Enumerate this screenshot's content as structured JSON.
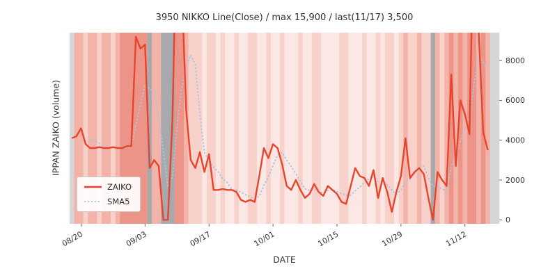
{
  "chart_data": {
    "type": "line",
    "title": "3950 NIKKO Line(Close) / max 15,900 / last(11/17) 3,500",
    "xlabel": "DATE",
    "ylabel": "IPPAN ZAIKO (volume)",
    "ylim": [
      -200,
      9400
    ],
    "yticks": [
      0,
      2000,
      4000,
      6000,
      8000
    ],
    "xticks": [
      {
        "i": 2,
        "label": "08/20"
      },
      {
        "i": 16,
        "label": "09/03"
      },
      {
        "i": 30,
        "label": "09/17"
      },
      {
        "i": 44,
        "label": "10/01"
      },
      {
        "i": 58,
        "label": "10/15"
      },
      {
        "i": 72,
        "label": "10/29"
      },
      {
        "i": 86,
        "label": "11/12"
      }
    ],
    "dates": [
      "08/18",
      "08/19",
      "08/20",
      "08/21",
      "08/22",
      "08/23",
      "08/24",
      "08/25",
      "08/26",
      "08/27",
      "08/28",
      "08/29",
      "08/30",
      "08/31",
      "09/01",
      "09/02",
      "09/03",
      "09/04",
      "09/05",
      "09/06",
      "09/07",
      "09/08",
      "09/09",
      "09/10",
      "09/11",
      "09/12",
      "09/13",
      "09/14",
      "09/15",
      "09/16",
      "09/17",
      "09/18",
      "09/19",
      "09/20",
      "09/21",
      "09/22",
      "09/23",
      "09/24",
      "09/25",
      "09/26",
      "09/27",
      "09/28",
      "09/29",
      "09/30",
      "10/01",
      "10/02",
      "10/03",
      "10/04",
      "10/05",
      "10/06",
      "10/07",
      "10/08",
      "10/09",
      "10/10",
      "10/11",
      "10/12",
      "10/13",
      "10/14",
      "10/15",
      "10/16",
      "10/17",
      "10/18",
      "10/19",
      "10/20",
      "10/21",
      "10/22",
      "10/23",
      "10/24",
      "10/25",
      "10/26",
      "10/27",
      "10/28",
      "10/29",
      "10/30",
      "10/31",
      "11/01",
      "11/02",
      "11/03",
      "11/04",
      "11/05",
      "11/06",
      "11/07",
      "11/08",
      "11/09",
      "11/10",
      "11/11",
      "11/12",
      "11/13",
      "11/14",
      "11/15",
      "11/16",
      "11/17",
      "11/18",
      "11/19"
    ],
    "series": [
      {
        "name": "ZAIKO",
        "color": "#e8432d",
        "style": "solid",
        "max": 15900,
        "last": 3500,
        "values": [
          4100,
          4200,
          4600,
          3800,
          3600,
          3600,
          3650,
          3600,
          3600,
          3650,
          3600,
          3600,
          3700,
          3700,
          9200,
          8600,
          8800,
          2600,
          3000,
          2700,
          0,
          0,
          5000,
          15900,
          12000,
          5500,
          3000,
          2600,
          3400,
          2400,
          3300,
          1500,
          1500,
          1550,
          1500,
          1500,
          1400,
          1000,
          900,
          1000,
          900,
          2200,
          3600,
          3100,
          3800,
          3600,
          2800,
          1700,
          1500,
          2000,
          1500,
          1100,
          1300,
          1800,
          1400,
          1200,
          1700,
          1500,
          1300,
          900,
          800,
          1700,
          2600,
          2200,
          2100,
          1700,
          2500,
          1100,
          2100,
          1400,
          400,
          1400,
          2200,
          4100,
          2100,
          2400,
          2600,
          2300,
          1100,
          0,
          2400,
          2000,
          1700,
          7300,
          2700,
          6000,
          5300,
          4300,
          15900,
          9500,
          4400,
          3500,
          null,
          null
        ]
      },
      {
        "name": "SMA5",
        "color": "#a9c6de",
        "style": "dotted",
        "sma_window": 5
      }
    ],
    "band_palette": {
      "a": "#fbe7e3",
      "b": "#f8d2ca",
      "c": "#f3b3a8",
      "d": "#ec9487",
      "g": "#a7a9ac",
      "e": "#d6d6d6"
    },
    "bands": "eccbccbccbcddddddgccgggddcbbbabbabaabaabbaabaabaaabaabbaaaabbaaabaababbabcbbcbbgcbcdcdcddcdcee",
    "legend": {
      "items": [
        {
          "label": "ZAIKO"
        },
        {
          "label": "SMA5"
        }
      ]
    }
  }
}
